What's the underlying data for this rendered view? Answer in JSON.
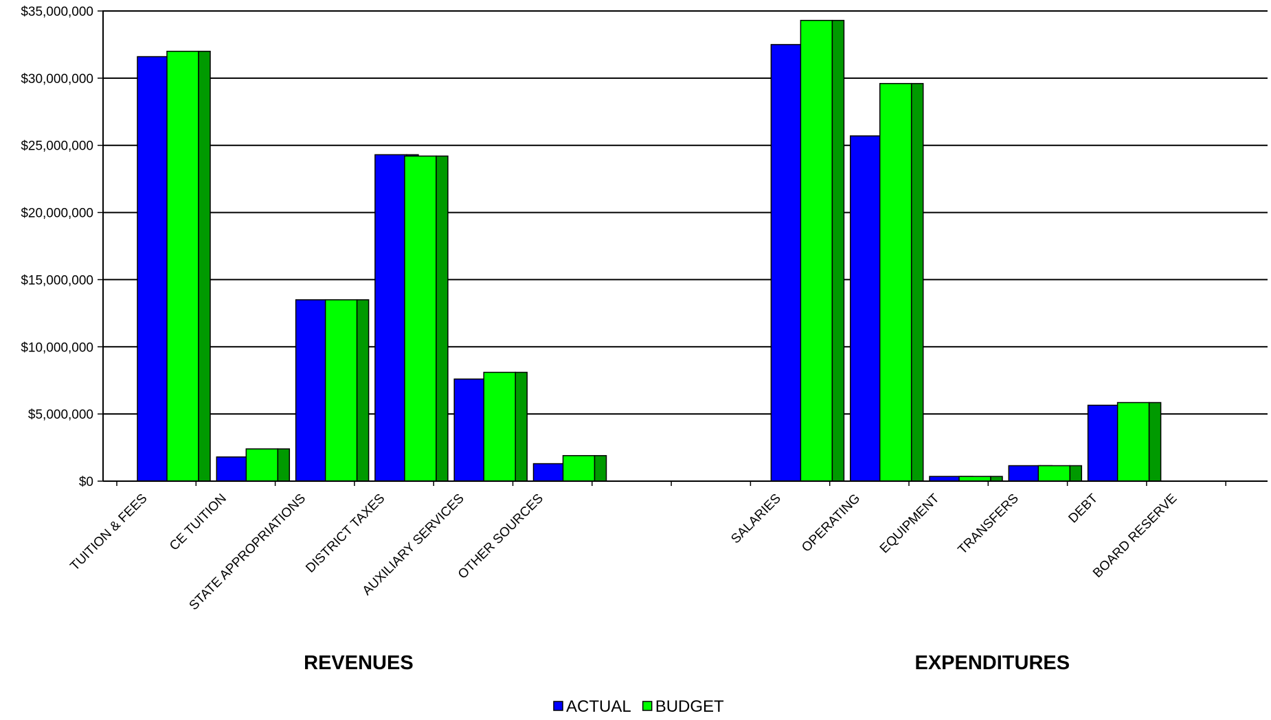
{
  "chart_data": {
    "type": "bar",
    "bar_style": "3d",
    "categories": [
      "TUITION & FEES",
      "CE TUITION",
      "STATE APPROPRIATIONS",
      "DISTRICT TAXES",
      "AUXILIARY SERVICES",
      "OTHER SOURCES",
      "",
      "",
      "SALARIES",
      "OPERATING",
      "EQUIPMENT",
      "TRANSFERS",
      "DEBT",
      "BOARD RESERVE"
    ],
    "series": [
      {
        "name": "ACTUAL",
        "color": "#0000ff",
        "side_color": "#00009a",
        "values": [
          31600000,
          1800000,
          13500000,
          24300000,
          7600000,
          1300000,
          null,
          null,
          32500000,
          25700000,
          350000,
          1150000,
          5650000,
          0
        ]
      },
      {
        "name": "BUDGET",
        "color": "#00ff00",
        "side_color": "#009a00",
        "values": [
          32000000,
          2400000,
          13500000,
          24200000,
          8100000,
          1900000,
          null,
          null,
          34300000,
          29600000,
          350000,
          1150000,
          5850000,
          0
        ]
      }
    ],
    "groups": [
      {
        "label": "REVENUES",
        "from_index": 0,
        "to_index": 5
      },
      {
        "label": "EXPENDITURES",
        "from_index": 8,
        "to_index": 13
      }
    ],
    "y_ticks": [
      "$0",
      "$5,000,000",
      "$10,000,000",
      "$15,000,000",
      "$20,000,000",
      "$25,000,000",
      "$30,000,000",
      "$35,000,000"
    ],
    "ylim": [
      0,
      35000000
    ],
    "ystep": 5000000,
    "grid": true,
    "legend_position": "bottom-center",
    "title": "",
    "xlabel": "",
    "ylabel": ""
  }
}
